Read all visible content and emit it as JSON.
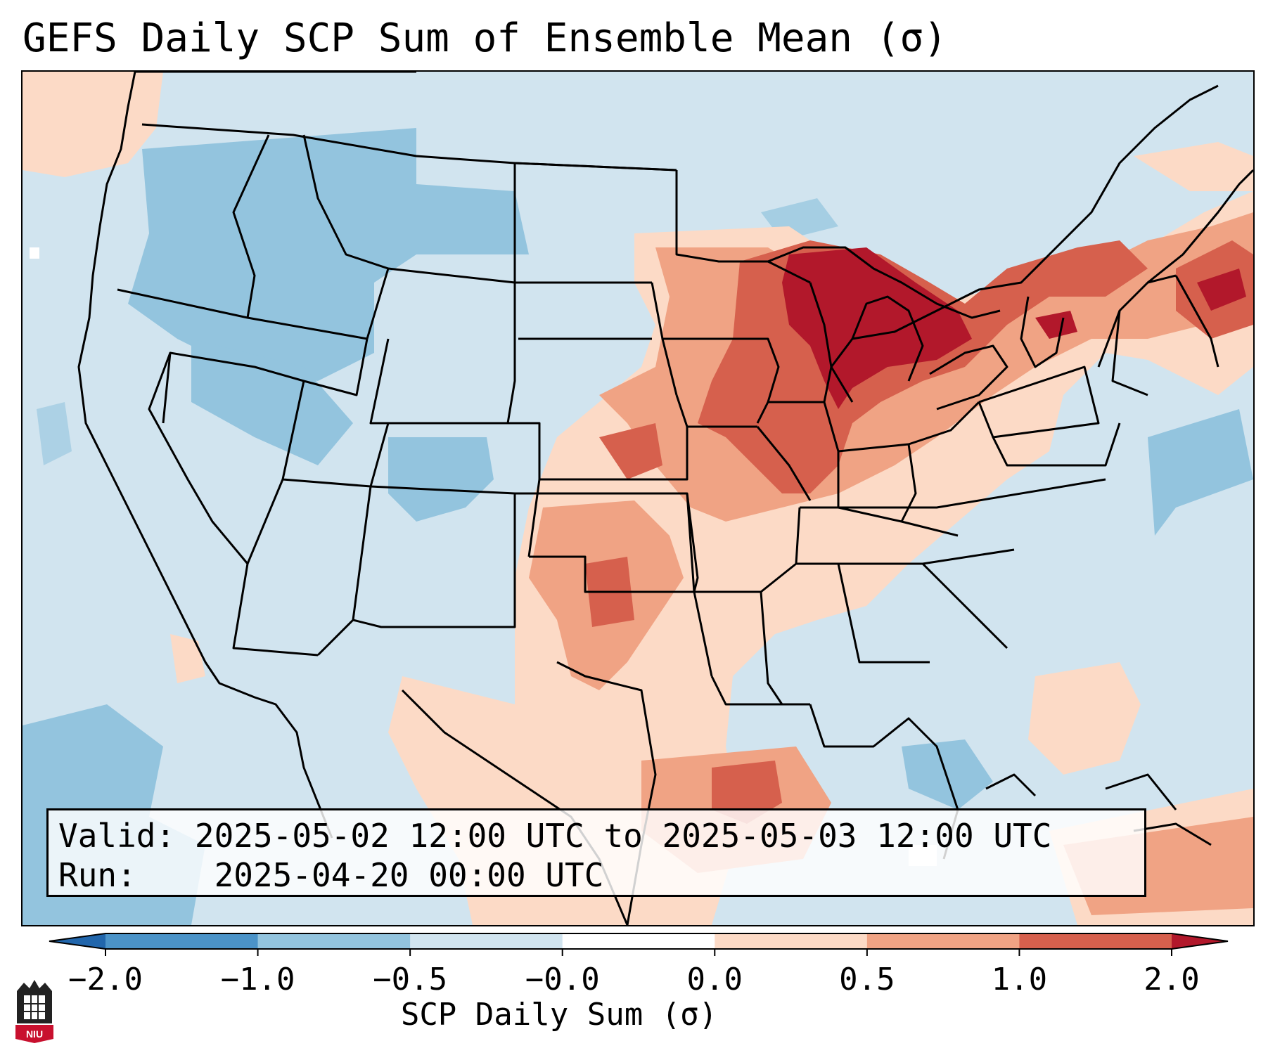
{
  "title": "GEFS Daily SCP Sum of Ensemble Mean (σ)",
  "info": {
    "valid_label": "Valid:",
    "valid_value": "2025-05-02 12:00 UTC to 2025-05-03 12:00 UTC",
    "run_label": "Run:",
    "run_value": "2025-04-20 00:00 UTC"
  },
  "colorbar": {
    "label": "SCP Daily Sum (σ)",
    "ticks": [
      "−2.0",
      "−1.0",
      "−0.5",
      "−0.0",
      "0.0",
      "0.5",
      "1.0",
      "2.0"
    ],
    "colors": [
      "#4b93c8",
      "#93c4de",
      "#d1e4ef",
      "#ffffff",
      "#fcdac6",
      "#f0a384",
      "#d6604d",
      "#b2182b"
    ],
    "extend_low_color": "#2166ac",
    "extend_high_color": "#b2182b"
  },
  "map": {
    "land_neutral": "#d1e4ef",
    "ocean": "#d1e4ef",
    "border_color": "#000000",
    "regions": [
      {
        "name": "great-lakes-core",
        "level": "strong-positive",
        "color": "#b2182b"
      },
      {
        "name": "upper-midwest",
        "level": "positive",
        "color": "#d6604d"
      },
      {
        "name": "central-plains",
        "level": "weak-positive",
        "color": "#f0a384"
      },
      {
        "name": "gulf-coast",
        "level": "positive",
        "color": "#d6604d"
      },
      {
        "name": "intermountain-west",
        "level": "weak-negative",
        "color": "#93c4de"
      },
      {
        "name": "northeast",
        "level": "positive",
        "color": "#d6604d"
      }
    ]
  },
  "logo": {
    "text": "NIU"
  }
}
